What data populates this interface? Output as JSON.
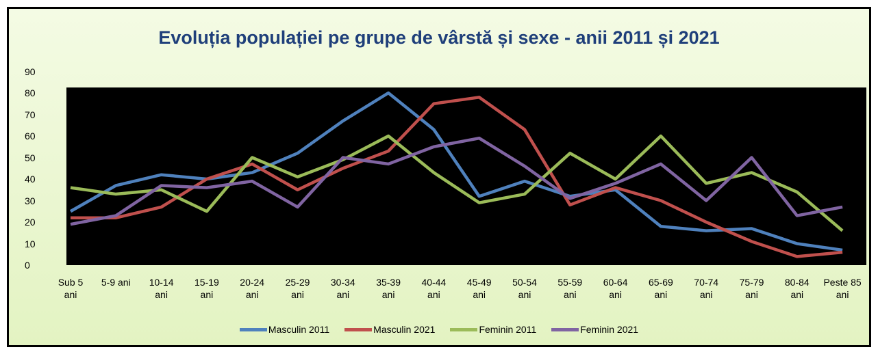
{
  "chart_data": {
    "type": "line",
    "title": "Evoluția populației pe grupe de vârstă și sexe - anii 2011 și 2021",
    "categories": [
      "Sub 5 ani",
      "5-9 ani",
      "10-14 ani",
      "15-19 ani",
      "20-24 ani",
      "25-29 ani",
      "30-34 ani",
      "35-39 ani",
      "40-44 ani",
      "45-49 ani",
      "50-54 ani",
      "55-59 ani",
      "60-64 ani",
      "65-69 ani",
      "70-74 ani",
      "75-79 ani",
      "80-84 ani",
      "Peste 85 ani"
    ],
    "series": [
      {
        "name": "Masculin 2011",
        "color": "#4f81bd",
        "values": [
          25,
          37,
          42,
          40,
          43,
          52,
          67,
          80,
          63,
          32,
          39,
          32,
          35,
          18,
          16,
          17,
          10,
          7
        ]
      },
      {
        "name": "Masculin 2021",
        "color": "#c0504d",
        "values": [
          22,
          22,
          27,
          40,
          47,
          35,
          45,
          53,
          75,
          78,
          63,
          28,
          36,
          30,
          20,
          11,
          4,
          6
        ]
      },
      {
        "name": "Feminin 2011",
        "color": "#9bbb59",
        "values": [
          36,
          33,
          35,
          25,
          50,
          41,
          49,
          60,
          43,
          29,
          33,
          52,
          40,
          60,
          38,
          43,
          34,
          16
        ]
      },
      {
        "name": "Feminin 2021",
        "color": "#8064a2",
        "values": [
          19,
          23,
          37,
          36,
          39,
          27,
          50,
          47,
          55,
          59,
          46,
          31,
          38,
          47,
          30,
          50,
          23,
          27
        ]
      }
    ],
    "ylim": [
      0,
      90
    ],
    "yticks": [
      0,
      10,
      20,
      30,
      40,
      50,
      60,
      70,
      80,
      90
    ],
    "plot_background": "#000000",
    "legend": "bottom"
  }
}
